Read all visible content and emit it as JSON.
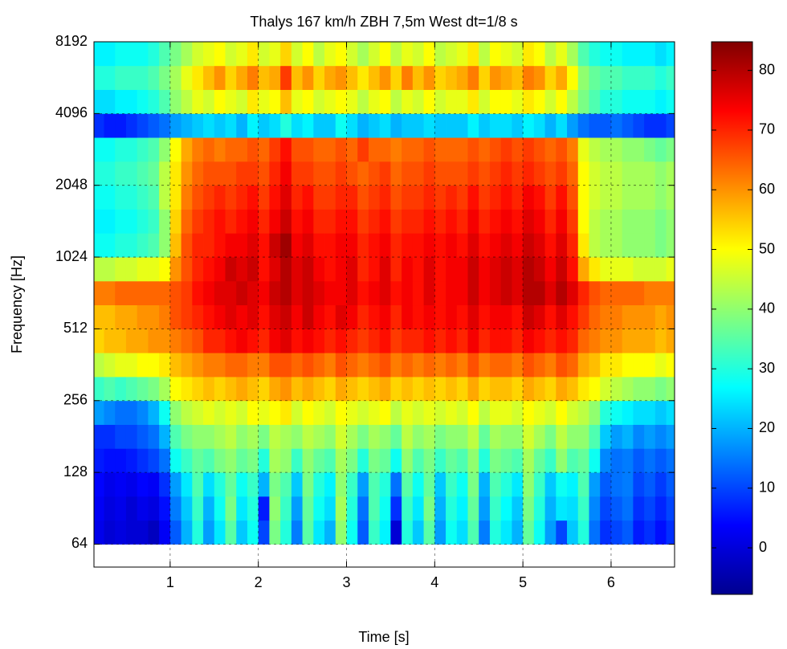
{
  "chart_data": {
    "type": "heatmap",
    "title": "Thalys 167 km/h ZBH 7,5m West dt=1/8 s",
    "x_label": "Time [s]",
    "y_label": "Frequency [Hz]",
    "xlim": [
      0.136,
      6.72
    ],
    "ylim": [
      51.3,
      8192
    ],
    "y_log2": true,
    "xticks": [
      1,
      2,
      3,
      4,
      5,
      6
    ],
    "yticks": [
      64,
      128,
      256,
      512,
      1024,
      2048,
      4096,
      8192
    ],
    "grid": true,
    "clim": [
      -7.8,
      84.8
    ],
    "cticks": [
      0,
      10,
      20,
      30,
      40,
      50,
      60,
      70,
      80
    ],
    "colormap": "jet",
    "x": [
      0.1875,
      0.3125,
      0.4375,
      0.5625,
      0.6875,
      0.8125,
      0.9375,
      1.0625,
      1.1875,
      1.3125,
      1.4375,
      1.5625,
      1.6875,
      1.8125,
      1.9375,
      2.0625,
      2.1875,
      2.3125,
      2.4375,
      2.5625,
      2.6875,
      2.8125,
      2.9375,
      3.0625,
      3.1875,
      3.3125,
      3.4375,
      3.5625,
      3.6875,
      3.8125,
      3.9375,
      4.0625,
      4.1875,
      4.3125,
      4.4375,
      4.5625,
      4.6875,
      4.8125,
      4.9375,
      5.0625,
      5.1875,
      5.3125,
      5.4375,
      5.5625,
      5.6875,
      5.8125,
      5.9375,
      6.0625,
      6.1875,
      6.3125,
      6.4375,
      6.5625,
      6.6875
    ],
    "y": [
      64,
      80.6,
      101.6,
      128,
      161.3,
      203.2,
      256,
      322.5,
      406.4,
      512,
      645.1,
      812.7,
      1024,
      1290.2,
      1625.5,
      2048,
      2580.3,
      3251,
      4096,
      5160.6,
      6502
    ],
    "z": [
      [
        2,
        0,
        1,
        0,
        0,
        -2,
        3,
        12,
        20,
        30,
        18,
        25,
        35,
        22,
        28,
        10,
        38,
        30,
        15,
        35,
        25,
        20,
        40,
        28,
        12,
        32,
        26,
        0,
        30,
        22,
        35,
        18,
        28,
        24,
        34,
        15,
        30,
        25,
        20,
        36,
        28,
        18,
        10,
        22,
        30,
        14,
        8,
        10,
        12,
        6,
        8,
        5,
        8
      ],
      [
        3,
        1,
        2,
        0,
        2,
        1,
        5,
        15,
        22,
        32,
        20,
        28,
        38,
        25,
        30,
        6,
        40,
        32,
        18,
        36,
        28,
        24,
        42,
        30,
        14,
        34,
        28,
        8,
        32,
        25,
        38,
        20,
        30,
        26,
        36,
        18,
        32,
        27,
        22,
        38,
        30,
        20,
        25,
        24,
        32,
        16,
        10,
        12,
        14,
        8,
        10,
        7,
        10
      ],
      [
        4,
        2,
        3,
        2,
        4,
        3,
        8,
        18,
        25,
        34,
        24,
        30,
        36,
        28,
        32,
        20,
        38,
        34,
        22,
        38,
        30,
        26,
        40,
        32,
        18,
        34,
        30,
        14,
        35,
        28,
        36,
        22,
        32,
        28,
        38,
        20,
        34,
        30,
        25,
        40,
        32,
        22,
        28,
        26,
        34,
        18,
        12,
        14,
        15,
        10,
        12,
        9,
        12
      ],
      [
        6,
        5,
        5,
        6,
        8,
        10,
        14,
        28,
        32,
        36,
        34,
        38,
        40,
        36,
        38,
        30,
        42,
        40,
        32,
        40,
        36,
        34,
        42,
        38,
        30,
        38,
        36,
        28,
        40,
        34,
        38,
        32,
        36,
        34,
        40,
        30,
        38,
        36,
        34,
        42,
        36,
        32,
        40,
        34,
        36,
        28,
        16,
        14,
        15,
        12,
        14,
        12,
        14
      ],
      [
        8,
        8,
        10,
        10,
        12,
        14,
        20,
        34,
        38,
        40,
        40,
        42,
        44,
        40,
        42,
        38,
        44,
        42,
        40,
        44,
        42,
        40,
        46,
        42,
        38,
        42,
        40,
        36,
        44,
        40,
        42,
        38,
        40,
        40,
        44,
        36,
        42,
        40,
        40,
        46,
        42,
        38,
        44,
        40,
        40,
        34,
        22,
        18,
        20,
        16,
        18,
        16,
        18
      ],
      [
        18,
        16,
        14,
        14,
        16,
        20,
        28,
        40,
        44,
        46,
        48,
        46,
        48,
        46,
        50,
        48,
        50,
        52,
        46,
        50,
        48,
        46,
        50,
        48,
        46,
        48,
        50,
        44,
        48,
        46,
        48,
        46,
        48,
        46,
        50,
        44,
        48,
        48,
        46,
        50,
        48,
        46,
        50,
        46,
        44,
        40,
        30,
        28,
        26,
        24,
        24,
        22,
        24
      ],
      [
        32,
        34,
        32,
        34,
        36,
        38,
        42,
        50,
        52,
        54,
        56,
        54,
        56,
        58,
        56,
        54,
        58,
        60,
        56,
        58,
        56,
        54,
        58,
        56,
        54,
        56,
        58,
        54,
        56,
        54,
        56,
        54,
        56,
        54,
        58,
        54,
        56,
        56,
        54,
        58,
        56,
        54,
        58,
        56,
        52,
        50,
        46,
        44,
        42,
        40,
        40,
        38,
        40
      ],
      [
        44,
        46,
        48,
        48,
        50,
        50,
        52,
        56,
        58,
        60,
        62,
        62,
        64,
        64,
        62,
        62,
        66,
        66,
        64,
        66,
        64,
        62,
        66,
        64,
        62,
        64,
        66,
        62,
        64,
        62,
        64,
        62,
        64,
        62,
        66,
        62,
        64,
        64,
        62,
        66,
        64,
        62,
        66,
        64,
        58,
        56,
        52,
        52,
        50,
        50,
        50,
        48,
        50
      ],
      [
        54,
        56,
        56,
        58,
        58,
        60,
        60,
        62,
        64,
        66,
        70,
        70,
        72,
        74,
        72,
        70,
        74,
        76,
        72,
        74,
        72,
        70,
        72,
        70,
        68,
        70,
        72,
        68,
        70,
        70,
        72,
        70,
        72,
        70,
        74,
        70,
        72,
        72,
        70,
        74,
        72,
        70,
        72,
        70,
        64,
        62,
        60,
        60,
        58,
        58,
        58,
        56,
        58
      ],
      [
        56,
        56,
        58,
        58,
        60,
        60,
        62,
        66,
        68,
        70,
        72,
        74,
        76,
        74,
        76,
        72,
        76,
        78,
        74,
        78,
        74,
        72,
        76,
        74,
        70,
        72,
        74,
        70,
        74,
        72,
        74,
        72,
        74,
        72,
        76,
        72,
        74,
        74,
        72,
        78,
        76,
        72,
        76,
        72,
        68,
        64,
        62,
        62,
        60,
        60,
        60,
        58,
        60
      ],
      [
        62,
        62,
        64,
        64,
        64,
        64,
        64,
        66,
        68,
        72,
        74,
        76,
        76,
        78,
        76,
        74,
        78,
        80,
        76,
        78,
        76,
        74,
        74,
        76,
        72,
        74,
        76,
        72,
        74,
        72,
        76,
        72,
        74,
        74,
        78,
        74,
        76,
        78,
        76,
        80,
        80,
        76,
        80,
        76,
        70,
        66,
        64,
        64,
        64,
        64,
        62,
        62,
        62
      ],
      [
        44,
        44,
        46,
        46,
        48,
        48,
        50,
        60,
        66,
        70,
        72,
        74,
        78,
        76,
        78,
        72,
        76,
        80,
        76,
        78,
        74,
        72,
        74,
        76,
        70,
        72,
        76,
        70,
        74,
        72,
        76,
        72,
        74,
        74,
        78,
        74,
        76,
        78,
        76,
        80,
        78,
        74,
        78,
        72,
        58,
        52,
        48,
        48,
        48,
        46,
        46,
        46,
        48
      ],
      [
        28,
        28,
        30,
        30,
        32,
        34,
        40,
        56,
        66,
        70,
        70,
        72,
        74,
        74,
        76,
        72,
        78,
        82,
        74,
        76,
        72,
        72,
        74,
        74,
        70,
        72,
        74,
        70,
        72,
        72,
        74,
        72,
        74,
        72,
        76,
        72,
        74,
        76,
        74,
        78,
        76,
        72,
        76,
        70,
        52,
        44,
        42,
        42,
        40,
        40,
        40,
        38,
        40
      ],
      [
        26,
        26,
        28,
        28,
        30,
        32,
        40,
        54,
        64,
        68,
        70,
        72,
        70,
        72,
        74,
        70,
        74,
        78,
        72,
        74,
        70,
        70,
        72,
        72,
        68,
        70,
        72,
        68,
        70,
        70,
        72,
        70,
        72,
        70,
        74,
        70,
        72,
        74,
        72,
        76,
        74,
        70,
        74,
        68,
        50,
        44,
        42,
        42,
        40,
        40,
        40,
        38,
        40
      ],
      [
        28,
        28,
        30,
        30,
        32,
        34,
        44,
        52,
        62,
        66,
        68,
        70,
        68,
        70,
        72,
        68,
        72,
        76,
        70,
        72,
        68,
        68,
        70,
        70,
        66,
        68,
        70,
        66,
        68,
        68,
        70,
        68,
        70,
        68,
        72,
        68,
        70,
        72,
        70,
        74,
        72,
        68,
        72,
        66,
        50,
        46,
        44,
        44,
        42,
        42,
        42,
        40,
        42
      ],
      [
        30,
        30,
        32,
        32,
        34,
        36,
        44,
        52,
        60,
        64,
        66,
        66,
        66,
        68,
        68,
        66,
        70,
        74,
        68,
        68,
        66,
        66,
        68,
        66,
        64,
        66,
        68,
        64,
        66,
        66,
        68,
        66,
        66,
        66,
        68,
        66,
        68,
        70,
        68,
        70,
        68,
        66,
        68,
        64,
        50,
        46,
        44,
        44,
        42,
        42,
        42,
        40,
        42
      ],
      [
        28,
        28,
        30,
        30,
        32,
        34,
        40,
        50,
        58,
        62,
        64,
        62,
        64,
        64,
        66,
        64,
        68,
        72,
        66,
        66,
        64,
        64,
        66,
        64,
        68,
        64,
        64,
        62,
        64,
        64,
        66,
        64,
        64,
        64,
        66,
        64,
        66,
        68,
        66,
        68,
        66,
        64,
        66,
        62,
        48,
        44,
        42,
        42,
        40,
        40,
        38,
        36,
        38
      ],
      [
        8,
        6,
        6,
        8,
        10,
        12,
        14,
        18,
        20,
        22,
        24,
        22,
        24,
        20,
        26,
        22,
        24,
        30,
        24,
        26,
        22,
        22,
        28,
        24,
        20,
        22,
        24,
        20,
        22,
        22,
        24,
        22,
        22,
        22,
        26,
        22,
        24,
        24,
        22,
        26,
        24,
        20,
        24,
        18,
        14,
        12,
        12,
        14,
        12,
        10,
        8,
        8,
        10
      ],
      [
        24,
        24,
        26,
        26,
        28,
        30,
        34,
        40,
        44,
        48,
        46,
        50,
        48,
        46,
        52,
        48,
        50,
        56,
        48,
        50,
        46,
        48,
        50,
        48,
        44,
        48,
        50,
        44,
        48,
        46,
        50,
        46,
        48,
        48,
        52,
        46,
        50,
        50,
        48,
        52,
        50,
        46,
        50,
        44,
        38,
        34,
        30,
        30,
        28,
        28,
        28,
        26,
        28
      ],
      [
        30,
        30,
        32,
        32,
        32,
        34,
        38,
        42,
        48,
        52,
        56,
        60,
        54,
        58,
        62,
        56,
        58,
        68,
        56,
        60,
        54,
        58,
        60,
        56,
        52,
        56,
        60,
        54,
        62,
        56,
        60,
        54,
        56,
        58,
        62,
        54,
        60,
        58,
        56,
        62,
        60,
        54,
        58,
        50,
        40,
        36,
        34,
        34,
        32,
        32,
        32,
        30,
        32
      ],
      [
        26,
        26,
        28,
        28,
        28,
        30,
        34,
        38,
        42,
        46,
        48,
        50,
        46,
        48,
        52,
        46,
        48,
        54,
        46,
        50,
        44,
        48,
        50,
        46,
        42,
        46,
        50,
        44,
        48,
        46,
        50,
        44,
        46,
        48,
        52,
        44,
        50,
        48,
        46,
        52,
        50,
        44,
        48,
        42,
        34,
        30,
        28,
        28,
        26,
        26,
        26,
        24,
        26
      ]
    ]
  }
}
